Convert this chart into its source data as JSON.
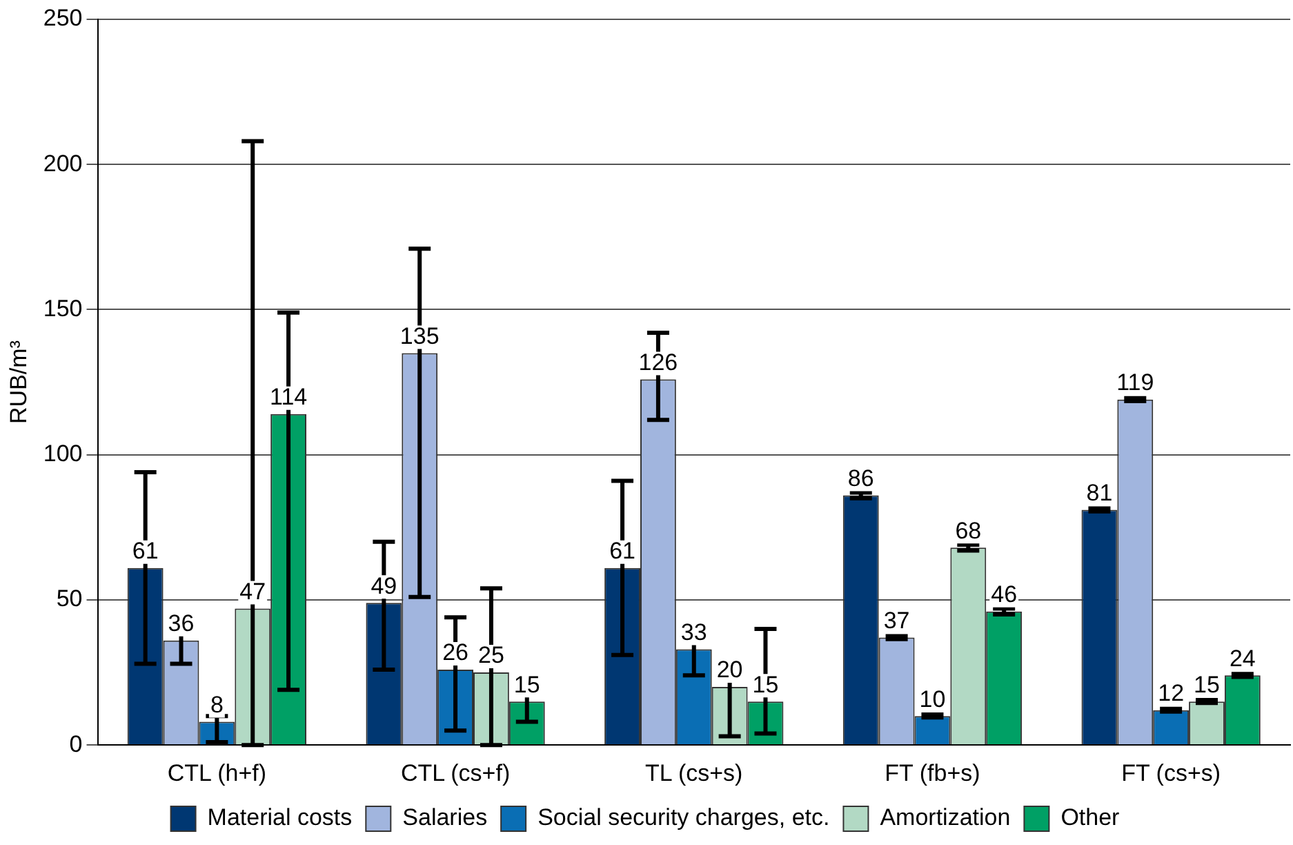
{
  "chart_data": {
    "type": "bar",
    "ylabel": "RUB/m³",
    "categories": [
      "CTL (h+f)",
      "CTL (cs+f)",
      "TL (cs+s)",
      "FT (fb+s)",
      "FT (cs+s)"
    ],
    "series": [
      {
        "name": "Material costs",
        "color": "#003772",
        "values": [
          61,
          49,
          61,
          86,
          81
        ],
        "errors": [
          [
            28,
            94
          ],
          [
            26,
            70
          ],
          [
            31,
            91
          ],
          [
            85,
            87
          ],
          [
            80.5,
            81.5
          ]
        ]
      },
      {
        "name": "Salaries",
        "color": "#a1b5de",
        "values": [
          36,
          135,
          126,
          37,
          119
        ],
        "errors": [
          [
            28,
            43
          ],
          [
            51,
            171
          ],
          [
            112,
            142
          ],
          [
            36.5,
            37.5
          ],
          [
            118.5,
            119.5
          ]
        ]
      },
      {
        "name": "Social security charges, etc.",
        "color": "#0a6eb4",
        "values": [
          8,
          26,
          33,
          10,
          12
        ],
        "errors": [
          [
            1,
            10
          ],
          [
            5,
            44
          ],
          [
            24,
            41
          ],
          [
            9.5,
            10.5
          ],
          [
            11.5,
            12.5
          ]
        ]
      },
      {
        "name": "Amortization",
        "color": "#b2d9c4",
        "values": [
          47,
          25,
          20,
          68,
          15
        ],
        "errors": [
          [
            0,
            208
          ],
          [
            0,
            54
          ],
          [
            3,
            28
          ],
          [
            67,
            69
          ],
          [
            14.5,
            15.5
          ]
        ]
      },
      {
        "name": "Other",
        "color": "#00a065",
        "values": [
          114,
          15,
          15,
          46,
          24
        ],
        "errors": [
          [
            19,
            149
          ],
          [
            8,
            23
          ],
          [
            4,
            40
          ],
          [
            45,
            47
          ],
          [
            23.5,
            24.5
          ]
        ]
      }
    ],
    "ylim": [
      0,
      250
    ],
    "yticks": [
      0,
      50,
      100,
      150,
      200,
      250
    ],
    "grid": "y",
    "legend": "bottom",
    "data_labels": true
  }
}
